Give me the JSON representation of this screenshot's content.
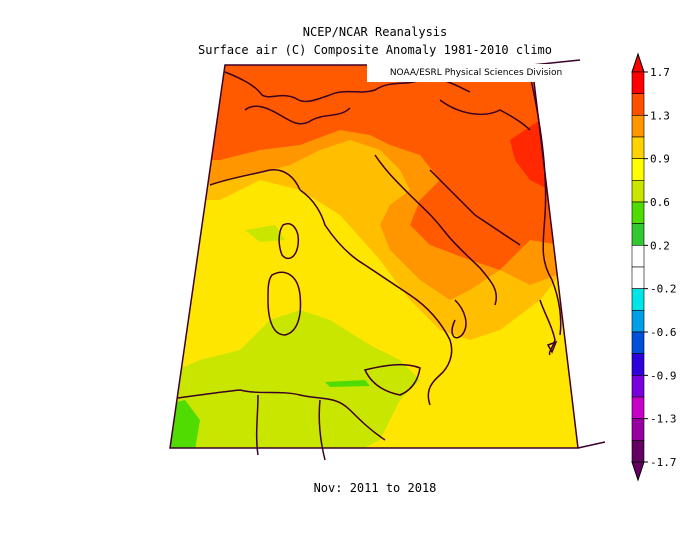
{
  "title_line1": "NCEP/NCAR Reanalysis",
  "title_line2": "Surface air (C) Composite Anomaly 1981-2010 climo",
  "credit": "NOAA/ESRL Physical Sciences Division",
  "period": "Nov: 2011 to 2018",
  "colorbar": {
    "labels": [
      "1.7",
      "1.3",
      "0.9",
      "0.6",
      "0.2",
      "-0.2",
      "-0.6",
      "-0.9",
      "-1.3",
      "-1.7"
    ],
    "colors": [
      "#ff0000",
      "#ff5000",
      "#ff9600",
      "#ffd200",
      "#ffff00",
      "#c8e600",
      "#50dc00",
      "#32c832",
      "#ffffff",
      "#ffffff",
      "#00e6e6",
      "#00a0e6",
      "#0050dc",
      "#2d00dc",
      "#7800dc",
      "#c800c8",
      "#9600a0",
      "#640064"
    ]
  },
  "map_colors": {
    "dark_red": "#ff2800",
    "red_orange": "#ff5a00",
    "orange": "#ff9600",
    "light_orange": "#ffbe00",
    "yellow": "#ffe600",
    "yellow_green": "#c8e600",
    "green": "#50dc00",
    "border": "#3c0028"
  }
}
